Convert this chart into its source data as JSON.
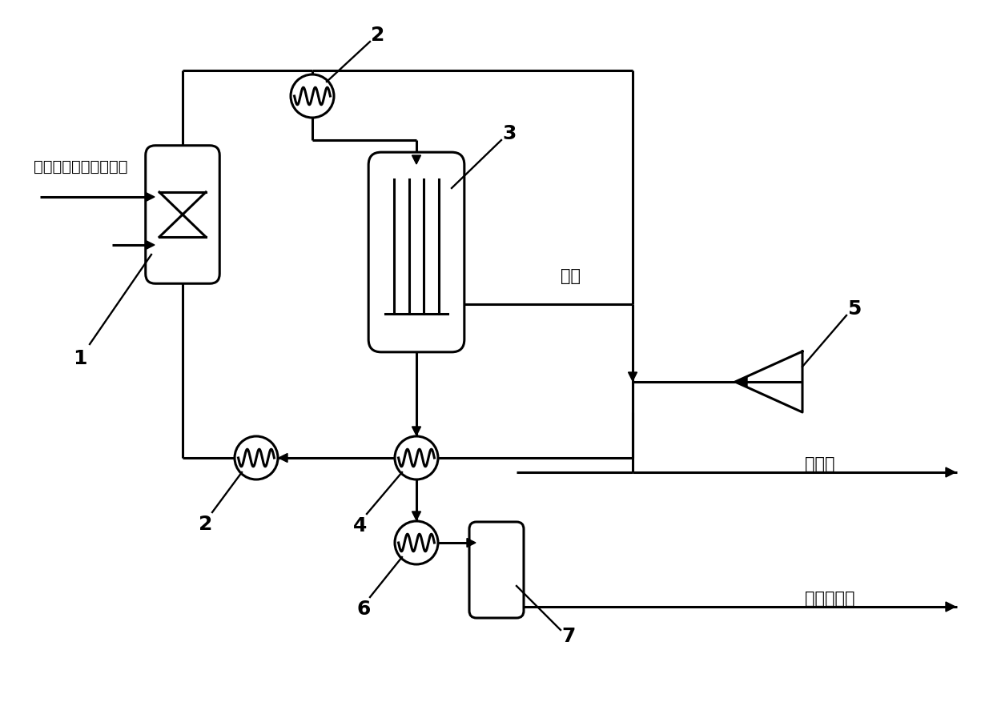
{
  "background_color": "#ffffff",
  "line_color": "#000000",
  "line_width": 2.2,
  "label_1": "1",
  "label_2a": "2",
  "label_2b": "2",
  "label_3": "3",
  "label_4": "4",
  "label_5": "5",
  "label_6": "6",
  "label_7": "7",
  "text_feed": "草酸二甲酯合成副产物",
  "text_hydrogen": "氢气",
  "text_purge": "驰放气",
  "text_methanol": "液相粗甲醇",
  "font_size_label": 18,
  "font_size_text": 15,
  "font_size_feed": 14
}
